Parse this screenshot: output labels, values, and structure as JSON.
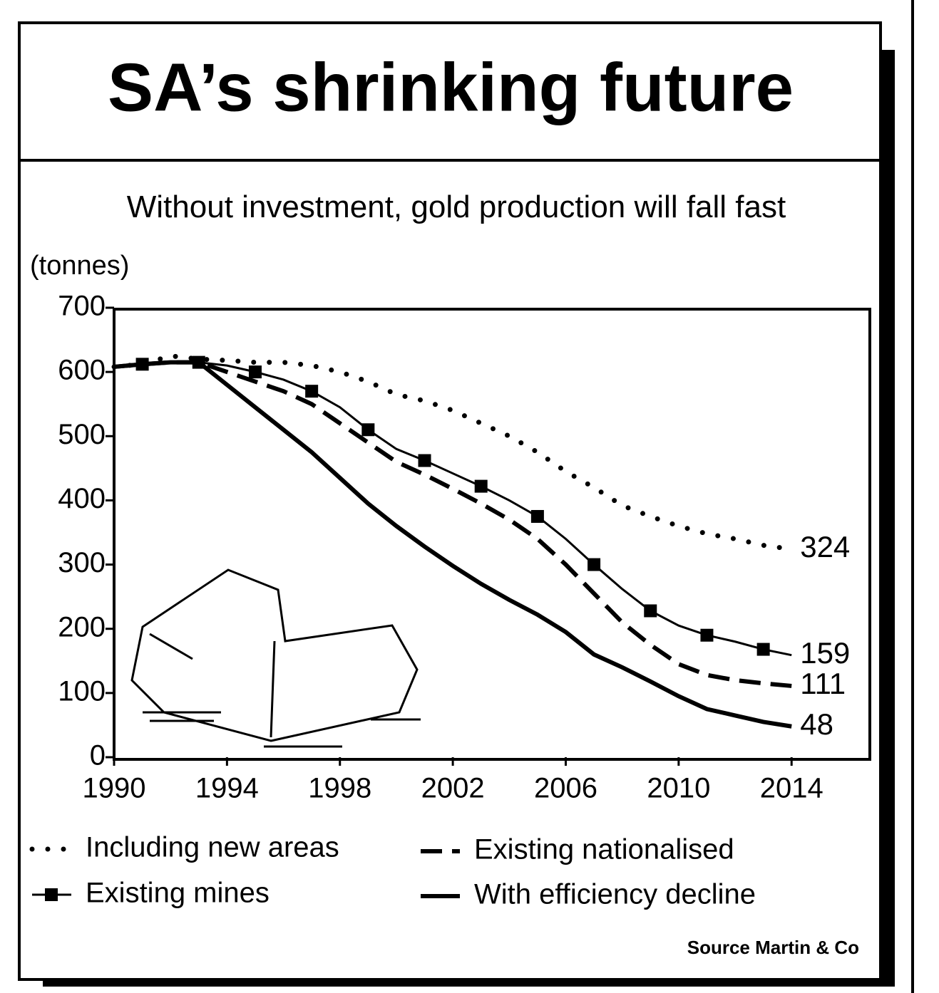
{
  "chart_data": {
    "type": "line",
    "title": "SA’s shrinking future",
    "subtitle": "Without investment, gold production will fall fast",
    "y_label": "(tonnes)",
    "source": "Source Martin & Co",
    "x": [
      1990,
      1991,
      1992,
      1993,
      1994,
      1995,
      1996,
      1997,
      1998,
      1999,
      2000,
      2001,
      2002,
      2003,
      2004,
      2005,
      2006,
      2007,
      2008,
      2009,
      2010,
      2011,
      2012,
      2013,
      2014
    ],
    "xlim": [
      1990,
      2017
    ],
    "xticks": [
      1990,
      1994,
      1998,
      2002,
      2006,
      2010,
      2014
    ],
    "ylim": [
      0,
      700
    ],
    "yticks": [
      0,
      100,
      200,
      300,
      400,
      500,
      600,
      700
    ],
    "series": [
      {
        "name": "Including new areas",
        "color": "#000000",
        "line_style": "dotted",
        "values": [
          608,
          612,
          625,
          620,
          618,
          615,
          615,
          610,
          600,
          585,
          565,
          555,
          540,
          520,
          500,
          475,
          445,
          420,
          392,
          375,
          360,
          348,
          340,
          330,
          324
        ]
      },
      {
        "name": "Existing mines",
        "color": "#000000",
        "line_style": "solid",
        "marker": "square",
        "values": [
          608,
          612,
          615,
          615,
          610,
          600,
          588,
          570,
          545,
          510,
          480,
          462,
          442,
          422,
          400,
          375,
          340,
          300,
          262,
          228,
          205,
          190,
          180,
          168,
          159
        ]
      },
      {
        "name": "Existing nationalised",
        "color": "#000000",
        "line_style": "dashed",
        "values": [
          608,
          612,
          615,
          615,
          600,
          585,
          570,
          550,
          520,
          490,
          460,
          440,
          418,
          395,
          370,
          340,
          300,
          255,
          210,
          175,
          145,
          128,
          120,
          115,
          111
        ]
      },
      {
        "name": "With efficiency decline",
        "color": "#000000",
        "line_style": "thick",
        "values": [
          608,
          612,
          615,
          615,
          580,
          545,
          510,
          475,
          435,
          395,
          360,
          328,
          298,
          270,
          245,
          222,
          195,
          160,
          140,
          118,
          95,
          75,
          65,
          55,
          48
        ]
      }
    ]
  }
}
